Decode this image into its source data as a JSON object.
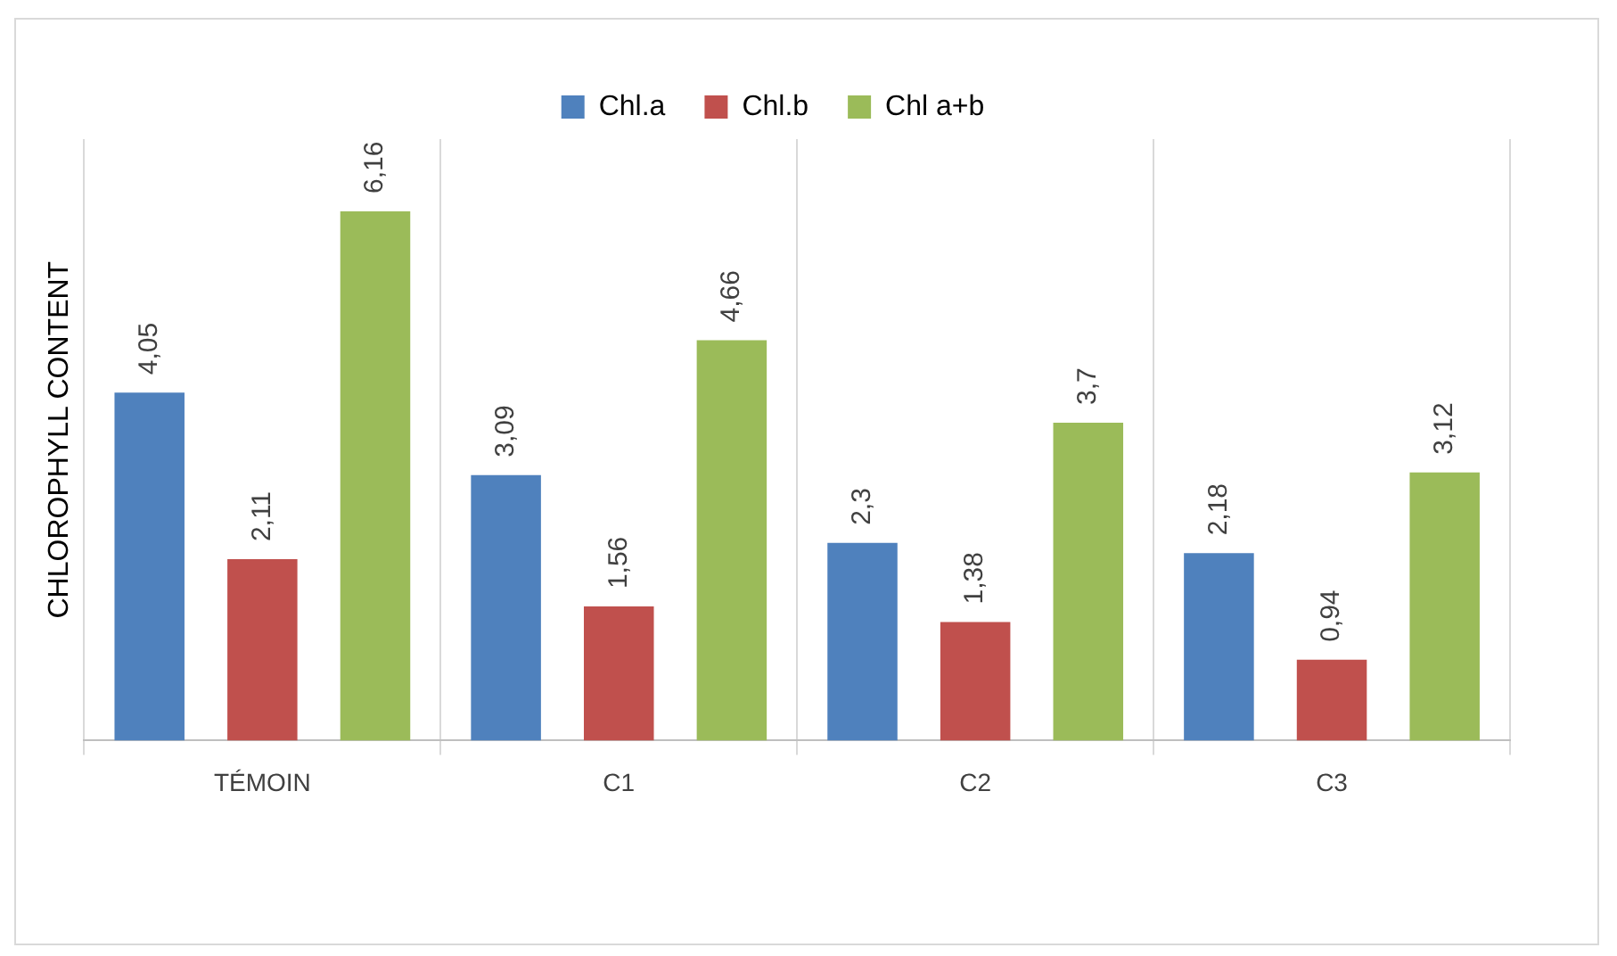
{
  "chart_data": {
    "type": "bar",
    "ylabel": "CHLOROPHYLL CONTENT",
    "categories": [
      "TÉMOIN",
      "C1",
      "C2",
      "C3"
    ],
    "series": [
      {
        "name": "Chl.a",
        "color": "#4f81bd",
        "values": [
          4.05,
          3.09,
          2.3,
          2.18
        ],
        "value_labels": [
          "4,05",
          "3,09",
          "2,3",
          "2,18"
        ]
      },
      {
        "name": "Chl.b",
        "color": "#c0504d",
        "values": [
          2.11,
          1.56,
          1.38,
          0.94
        ],
        "value_labels": [
          "2,11",
          "1,56",
          "1,38",
          "0,94"
        ]
      },
      {
        "name": "Chl a+b",
        "color": "#9bbb59",
        "values": [
          6.16,
          4.66,
          3.7,
          3.12
        ],
        "value_labels": [
          "6,16",
          "4,66",
          "3,7",
          "3,12"
        ]
      }
    ],
    "grid": "x",
    "legend": "top"
  }
}
